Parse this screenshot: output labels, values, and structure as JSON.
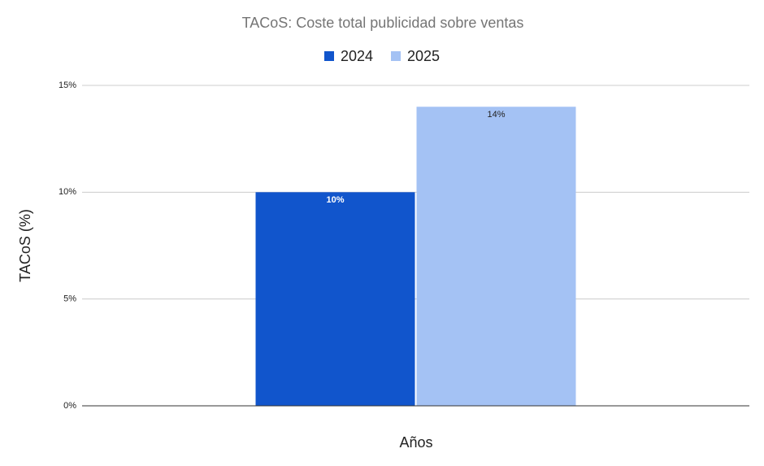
{
  "chart_data": {
    "type": "bar",
    "title": "TACoS: Coste total publicidad sobre ventas",
    "x_label": "Años",
    "y_label": "TACoS (%)",
    "categories": [
      null
    ],
    "series": [
      {
        "name": "2024",
        "color": "#1155cc",
        "values": [
          10
        ],
        "value_labels": [
          "10%"
        ]
      },
      {
        "name": "2025",
        "color": "#a4c2f4",
        "values": [
          14
        ],
        "value_labels": [
          "14%"
        ]
      }
    ],
    "ylim": [
      0,
      15
    ],
    "yticks": [
      {
        "value": 0,
        "label": "0%"
      },
      {
        "value": 5,
        "label": "5%"
      },
      {
        "value": 10,
        "label": "10%"
      },
      {
        "value": 15,
        "label": "15%"
      }
    ],
    "grid": true,
    "legend": "top"
  }
}
